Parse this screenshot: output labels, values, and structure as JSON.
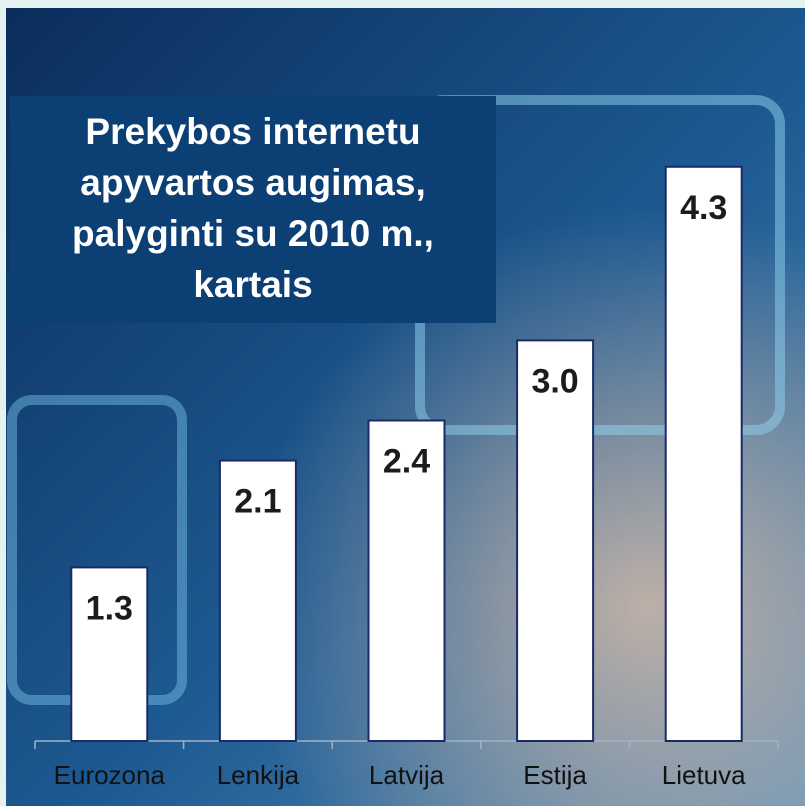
{
  "chart_data": {
    "type": "bar",
    "title": [
      "Prekybos internetu",
      "apyvartos augimas,",
      "palyginti su 2010 m.,",
      "kartais"
    ],
    "categories": [
      "Eurozona",
      "Lenkija",
      "Latvija",
      "Estija",
      "Lietuva"
    ],
    "values": [
      1.3,
      2.1,
      2.4,
      3.0,
      4.3
    ],
    "value_labels": [
      "1.3",
      "2.1",
      "2.4",
      "3.0",
      "4.3"
    ],
    "color": "#ffffff",
    "ylim": [
      0,
      4.8
    ]
  }
}
